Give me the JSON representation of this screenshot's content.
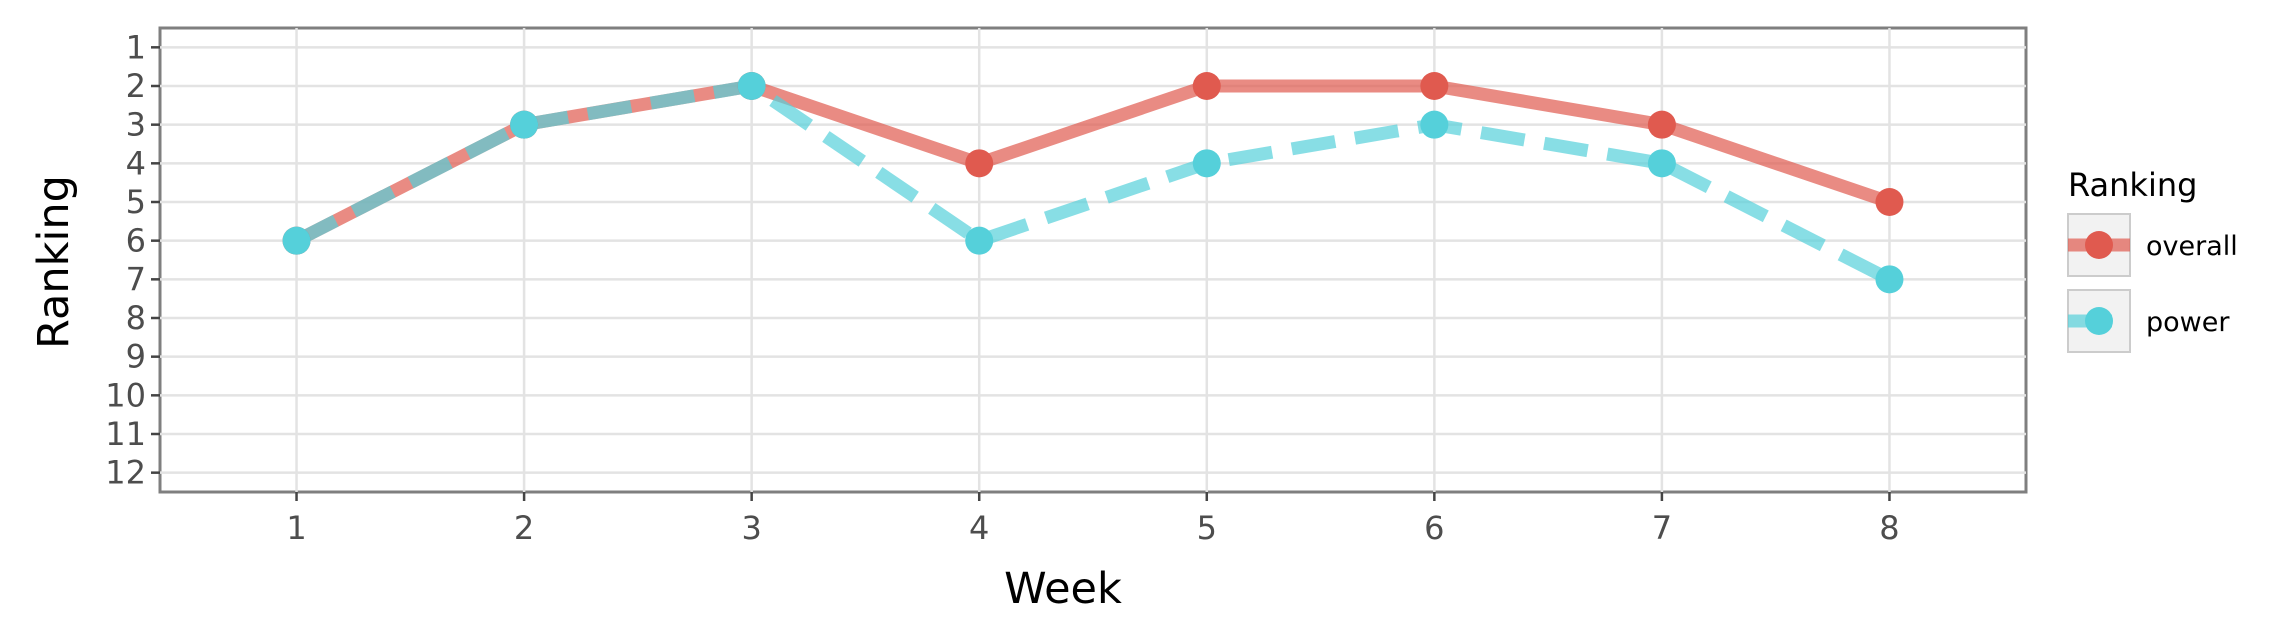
{
  "chart_data": {
    "type": "line",
    "xlabel": "Week",
    "ylabel": "Ranking",
    "x": [
      1,
      2,
      3,
      4,
      5,
      6,
      7,
      8
    ],
    "xlim": [
      0.4,
      8.6
    ],
    "ylim": [
      12.5,
      0.5
    ],
    "y_reversed": true,
    "y_ticks": [
      1,
      2,
      3,
      4,
      5,
      6,
      7,
      8,
      9,
      10,
      11,
      12
    ],
    "grid": true,
    "legend": {
      "title": "Ranking",
      "position": "right"
    },
    "series": [
      {
        "name": "overall",
        "values": [
          6,
          3,
          2,
          4,
          2,
          2,
          3,
          5
        ],
        "color": "#e05a4f",
        "line_style": "solid"
      },
      {
        "name": "power",
        "values": [
          6,
          3,
          2,
          6,
          4,
          3,
          4,
          7
        ],
        "color": "#55d0da",
        "line_style": "dashed"
      }
    ]
  }
}
